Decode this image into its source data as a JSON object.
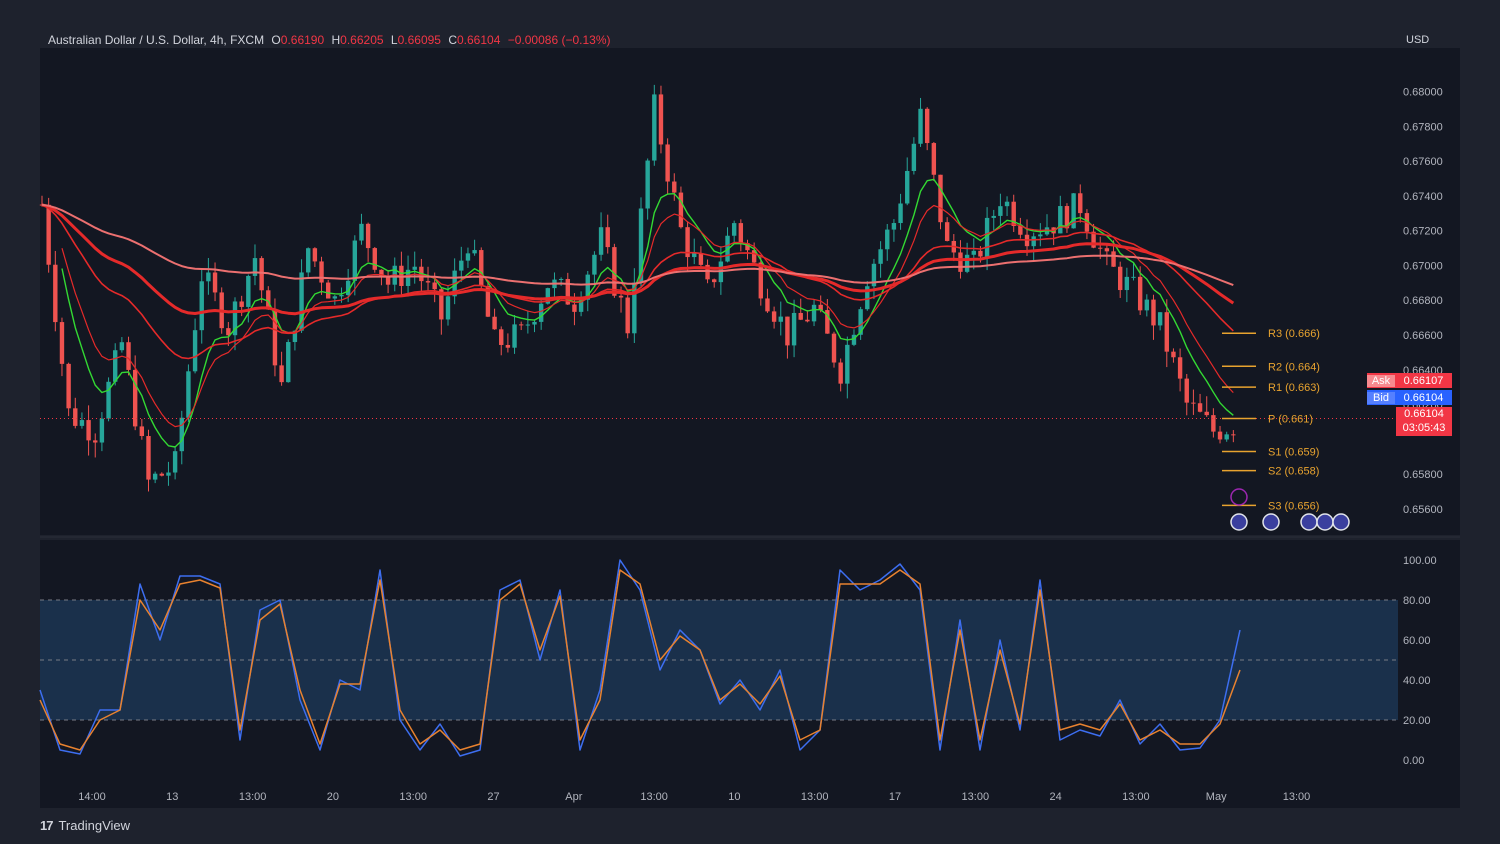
{
  "header": {
    "symbol": "Australian Dollar / U.S. Dollar, 4h, FXCM",
    "open_label": "O",
    "open": "0.66190",
    "high_label": "H",
    "high": "0.66205",
    "low_label": "L",
    "low": "0.66095",
    "close_label": "C",
    "close": "0.66104",
    "change": "−0.00086 (−0.13%)"
  },
  "currency": "USD",
  "branding": {
    "name": "TradingView"
  },
  "quote": {
    "ask_label": "Ask",
    "ask": "0.66107",
    "bid_label": "Bid",
    "bid": "0.66104",
    "last": "0.66104",
    "countdown": "03:05:43"
  },
  "colors": {
    "background": "#1e222d",
    "panel": "#131722",
    "up": "#26a69a",
    "down": "#ef5350",
    "ema_red": "#e52a2a",
    "ema_pink": "#ec7070",
    "ema_green": "#33d933",
    "stoch_k": "#3d6ef0",
    "stoch_d": "#e8822f",
    "pivot": "#e8a32f"
  },
  "chart_data": [
    {
      "type": "candlestick",
      "timeframe": "4h",
      "y_axis": {
        "range": [
          0.6545,
          0.6825
        ],
        "ticks": [
          "0.68000",
          "0.67800",
          "0.67600",
          "0.67400",
          "0.67200",
          "0.67000",
          "0.66800",
          "0.66600",
          "0.66400",
          "0.66200",
          "0.65800",
          "0.65600"
        ]
      },
      "x_axis": {
        "ticks": [
          "14:00",
          "13",
          "13:00",
          "20",
          "13:00",
          "27",
          "Apr",
          "13:00",
          "10",
          "13:00",
          "17",
          "13:00",
          "24",
          "13:00",
          "May",
          "13:00"
        ]
      },
      "price_path": [
        [
          0,
          0.6735
        ],
        [
          4,
          0.6615
        ],
        [
          8,
          0.6605
        ],
        [
          12,
          0.6655
        ],
        [
          16,
          0.6575
        ],
        [
          20,
          0.6585
        ],
        [
          24,
          0.6695
        ],
        [
          28,
          0.6665
        ],
        [
          32,
          0.6705
        ],
        [
          36,
          0.663
        ],
        [
          40,
          0.671
        ],
        [
          44,
          0.668
        ],
        [
          48,
          0.672
        ],
        [
          52,
          0.669
        ],
        [
          56,
          0.67
        ],
        [
          60,
          0.667
        ],
        [
          64,
          0.6715
        ],
        [
          68,
          0.6655
        ],
        [
          72,
          0.666
        ],
        [
          76,
          0.669
        ],
        [
          80,
          0.668
        ],
        [
          84,
          0.6715
        ],
        [
          88,
          0.6665
        ],
        [
          92,
          0.679
        ],
        [
          96,
          0.672
        ],
        [
          100,
          0.6685
        ],
        [
          104,
          0.6725
        ],
        [
          108,
          0.669
        ],
        [
          112,
          0.666
        ],
        [
          116,
          0.6675
        ],
        [
          120,
          0.664
        ],
        [
          124,
          0.6695
        ],
        [
          128,
          0.6725
        ],
        [
          132,
          0.6785
        ],
        [
          136,
          0.671
        ],
        [
          140,
          0.67
        ],
        [
          144,
          0.674
        ],
        [
          148,
          0.672
        ],
        [
          152,
          0.6725
        ],
        [
          156,
          0.6735
        ],
        [
          160,
          0.67
        ],
        [
          164,
          0.6685
        ],
        [
          168,
          0.6665
        ],
        [
          172,
          0.662
        ],
        [
          176,
          0.6605
        ],
        [
          180,
          0.661
        ]
      ],
      "indicators": [
        {
          "kind": "ema-fast",
          "color": "ema_red"
        },
        {
          "kind": "ema-mid",
          "color": "ema_red"
        },
        {
          "kind": "ema-slow",
          "color": "ema_red"
        },
        {
          "kind": "ema-long",
          "color": "ema_pink"
        },
        {
          "kind": "ema-longest",
          "color": "ema_pink"
        }
      ],
      "pivots": [
        {
          "label": "R3 (0.666)",
          "value": 0.6661
        },
        {
          "label": "R2 (0.664)",
          "value": 0.6642
        },
        {
          "label": "R1 (0.663)",
          "value": 0.663
        },
        {
          "label": "P (0.661)",
          "value": 0.6612
        },
        {
          "label": "S1 (0.659)",
          "value": 0.6593
        },
        {
          "label": "S2 (0.658)",
          "value": 0.6582
        },
        {
          "label": "S3 (0.656)",
          "value": 0.6562
        }
      ]
    },
    {
      "type": "line",
      "name_hidden": true,
      "y_axis": {
        "range": [
          0,
          100
        ],
        "ticks": [
          "100.00",
          "80.00",
          "60.00",
          "40.00",
          "20.00",
          "0.00"
        ]
      },
      "bands": {
        "upper": 80,
        "middle": 50,
        "lower": 20
      },
      "series": [
        {
          "color": "stoch_k",
          "values": [
            35,
            5,
            3,
            25,
            25,
            88,
            60,
            92,
            92,
            88,
            10,
            75,
            80,
            30,
            5,
            40,
            35,
            95,
            20,
            5,
            18,
            2,
            5,
            85,
            90,
            50,
            85,
            5,
            35,
            100,
            85,
            45,
            65,
            55,
            28,
            40,
            25,
            45,
            5,
            15,
            95,
            85,
            90,
            98,
            85,
            5,
            70,
            5,
            60,
            15,
            90,
            10,
            15,
            12,
            30,
            8,
            18,
            5,
            6,
            20,
            65
          ]
        },
        {
          "color": "stoch_d",
          "values": [
            30,
            8,
            5,
            20,
            25,
            80,
            65,
            88,
            90,
            86,
            15,
            70,
            78,
            35,
            8,
            38,
            38,
            90,
            25,
            8,
            15,
            5,
            8,
            80,
            88,
            55,
            82,
            10,
            30,
            95,
            88,
            50,
            62,
            55,
            30,
            38,
            28,
            42,
            10,
            15,
            88,
            88,
            88,
            95,
            88,
            10,
            65,
            10,
            55,
            18,
            85,
            15,
            18,
            15,
            28,
            10,
            15,
            8,
            8,
            18,
            45
          ]
        }
      ]
    }
  ]
}
